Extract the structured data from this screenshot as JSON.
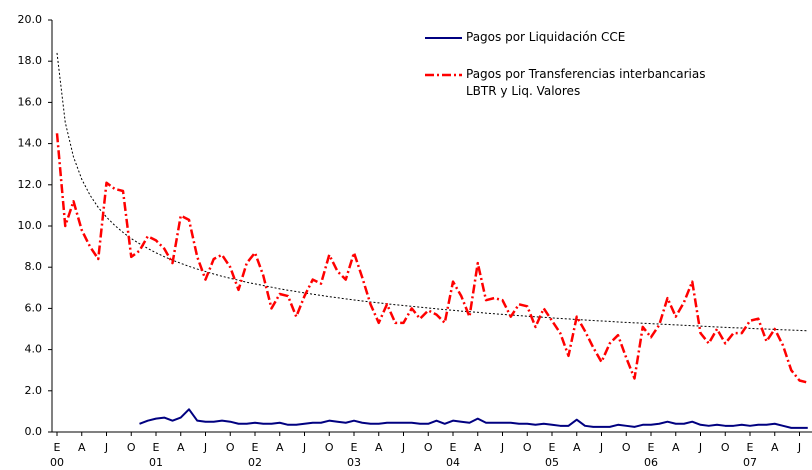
{
  "chart_data": {
    "type": "line",
    "categories": [
      "E",
      null,
      null,
      "A",
      null,
      null,
      "J",
      null,
      null,
      "O",
      null,
      null,
      "E",
      null,
      null,
      "A",
      null,
      null,
      "J",
      null,
      null,
      "O",
      null,
      null,
      "E",
      null,
      null,
      "A",
      null,
      null,
      "J",
      null,
      null,
      "O",
      null,
      null,
      "E",
      null,
      null,
      "A",
      null,
      null,
      "J",
      null,
      null,
      "O",
      null,
      null,
      "E",
      null,
      null,
      "A",
      null,
      null,
      "J",
      null,
      null,
      "O",
      null,
      null,
      "E",
      null,
      null,
      "A",
      null,
      null,
      "J",
      null,
      null,
      "O",
      null,
      null,
      "E",
      null,
      null,
      "A",
      null,
      null,
      "J",
      null,
      null,
      "O",
      null,
      null,
      "E",
      null,
      null,
      "A",
      null,
      null,
      "J",
      null
    ],
    "category_groups": [
      "00",
      null,
      null,
      null,
      null,
      null,
      null,
      null,
      null,
      null,
      null,
      null,
      "01",
      null,
      null,
      null,
      null,
      null,
      null,
      null,
      null,
      null,
      null,
      null,
      "02",
      null,
      null,
      null,
      null,
      null,
      null,
      null,
      null,
      null,
      null,
      null,
      "03",
      null,
      null,
      null,
      null,
      null,
      null,
      null,
      null,
      null,
      null,
      null,
      "04",
      null,
      null,
      null,
      null,
      null,
      null,
      null,
      null,
      null,
      null,
      null,
      "05",
      null,
      null,
      null,
      null,
      null,
      null,
      null,
      null,
      null,
      null,
      null,
      "06",
      null,
      null,
      null,
      null,
      null,
      null,
      null,
      null,
      null,
      null,
      null,
      "07",
      null,
      null,
      null,
      null,
      null,
      null,
      null
    ],
    "series": [
      {
        "name": "Pagos por Liquidación CCE",
        "color": "#000080",
        "linestyle": "solid",
        "values": [
          null,
          null,
          null,
          null,
          null,
          null,
          null,
          null,
          null,
          null,
          0.4,
          0.55,
          0.65,
          0.7,
          0.55,
          0.7,
          1.1,
          0.55,
          0.5,
          0.5,
          0.55,
          0.5,
          0.4,
          0.4,
          0.45,
          0.4,
          0.4,
          0.45,
          0.35,
          0.35,
          0.4,
          0.45,
          0.45,
          0.55,
          0.5,
          0.45,
          0.55,
          0.45,
          0.4,
          0.4,
          0.45,
          0.45,
          0.45,
          0.45,
          0.4,
          0.4,
          0.55,
          0.4,
          0.55,
          0.5,
          0.45,
          0.65,
          0.45,
          0.45,
          0.45,
          0.45,
          0.4,
          0.4,
          0.35,
          0.4,
          0.35,
          0.3,
          0.3,
          0.6,
          0.3,
          0.25,
          0.25,
          0.25,
          0.35,
          0.3,
          0.25,
          0.35,
          0.35,
          0.4,
          0.5,
          0.4,
          0.4,
          0.5,
          0.35,
          0.3,
          0.35,
          0.3,
          0.3,
          0.35,
          0.3,
          0.35,
          0.35,
          0.4,
          0.3,
          0.2,
          0.2,
          0.2
        ]
      },
      {
        "name": "Pagos por Transferencias interbancarias LBTR y Liq. Valores",
        "color": "#ff0000",
        "linestyle": "dash-dot",
        "values": [
          14.5,
          10.0,
          11.2,
          9.8,
          9.0,
          8.4,
          12.1,
          11.8,
          11.7,
          8.5,
          8.8,
          9.5,
          9.3,
          8.9,
          8.2,
          10.5,
          10.3,
          8.5,
          7.4,
          8.4,
          8.6,
          8.0,
          6.9,
          8.2,
          8.7,
          7.6,
          6.0,
          6.7,
          6.6,
          5.6,
          6.6,
          7.4,
          7.2,
          8.6,
          7.8,
          7.4,
          8.7,
          7.5,
          6.2,
          5.3,
          6.2,
          5.3,
          5.3,
          6.0,
          5.5,
          5.9,
          5.7,
          5.3,
          7.3,
          6.6,
          5.6,
          8.2,
          6.4,
          6.5,
          6.4,
          5.6,
          6.2,
          6.1,
          5.1,
          6.0,
          5.4,
          4.8,
          3.7,
          5.6,
          4.9,
          4.1,
          3.4,
          4.3,
          4.7,
          3.6,
          2.6,
          5.1,
          4.6,
          5.2,
          6.5,
          5.6,
          6.3,
          7.3,
          4.8,
          4.3,
          5.0,
          4.3,
          4.8,
          4.8,
          5.4,
          5.5,
          4.4,
          5.0,
          4.2,
          3.0,
          2.5,
          2.4
        ]
      },
      {
        "color": "#000000",
        "linestyle": "dotted",
        "values": [
          18.4,
          15.03,
          13.35,
          12.27,
          11.5,
          10.9,
          10.43,
          10.03,
          9.69,
          9.39,
          9.14,
          8.91,
          8.7,
          8.51,
          8.34,
          8.19,
          8.04,
          7.91,
          7.79,
          7.67,
          7.56,
          7.46,
          7.37,
          7.27,
          7.19,
          7.11,
          7.03,
          6.95,
          6.88,
          6.82,
          6.75,
          6.69,
          6.63,
          6.57,
          6.52,
          6.46,
          6.41,
          6.36,
          6.31,
          6.27,
          6.22,
          6.18,
          6.14,
          6.1,
          6.06,
          6.02,
          5.98,
          5.94,
          5.91,
          5.87,
          5.84,
          5.81,
          5.77,
          5.74,
          5.71,
          5.68,
          5.65,
          5.62,
          5.59,
          5.57,
          5.54,
          5.51,
          5.49,
          5.46,
          5.44,
          5.41,
          5.39,
          5.37,
          5.34,
          5.32,
          5.3,
          5.28,
          5.26,
          5.24,
          5.22,
          5.2,
          5.18,
          5.16,
          5.14,
          5.12,
          5.1,
          5.08,
          5.06,
          5.05,
          5.03,
          5.01,
          5.0,
          4.98,
          4.96,
          4.95,
          4.93,
          4.91
        ]
      }
    ],
    "ylim": [
      0,
      20
    ],
    "yticks": [
      {
        "value": 0,
        "label": "0.0"
      },
      {
        "value": 2,
        "label": "2.0"
      },
      {
        "value": 4,
        "label": "4.0"
      },
      {
        "value": 6,
        "label": "6.0"
      },
      {
        "value": 8,
        "label": "8.0"
      },
      {
        "value": 10,
        "label": "10.0"
      },
      {
        "value": 12,
        "label": "12.0"
      },
      {
        "value": 14,
        "label": "14.0"
      },
      {
        "value": 16,
        "label": "16.0"
      },
      {
        "value": 18,
        "label": "18.0"
      },
      {
        "value": 20,
        "label": "20.0"
      }
    ],
    "grid": false
  }
}
